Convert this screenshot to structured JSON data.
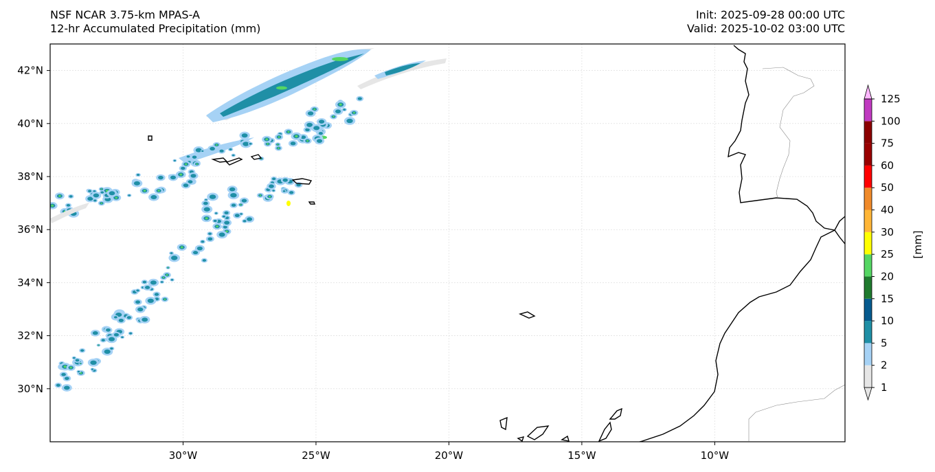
{
  "header": {
    "title_line1": "NSF NCAR 3.75-km MPAS-A",
    "title_line2": "12-hr Accumulated Precipitation (mm)",
    "init": "Init: 2025-09-28 00:00 UTC",
    "valid": "Valid: 2025-10-02 03:00 UTC"
  },
  "map": {
    "lon_range": [
      -35,
      -5.1
    ],
    "lat_range": [
      28.0,
      43.0
    ],
    "lon_ticks": [
      {
        "value": -30,
        "label": "30°W"
      },
      {
        "value": -25,
        "label": "25°W"
      },
      {
        "value": -20,
        "label": "20°W"
      },
      {
        "value": -15,
        "label": "15°W"
      },
      {
        "value": -10,
        "label": "10°W"
      }
    ],
    "lat_ticks": [
      {
        "value": 42,
        "label": "42°N"
      },
      {
        "value": 40,
        "label": "40°N"
      },
      {
        "value": 38,
        "label": "38°N"
      },
      {
        "value": 36,
        "label": "36°N"
      },
      {
        "value": 34,
        "label": "34°N"
      },
      {
        "value": 32,
        "label": "32°N"
      },
      {
        "value": 30,
        "label": "30°N"
      }
    ],
    "gridlines": true
  },
  "colorbar": {
    "label": "[mm]",
    "levels": [
      "1",
      "2",
      "5",
      "10",
      "15",
      "20",
      "25",
      "30",
      "40",
      "50",
      "60",
      "75",
      "100",
      "125"
    ],
    "colors": [
      "#e6e6e6",
      "#a6d2f5",
      "#1f8fa6",
      "#065a8e",
      "#1f7a2e",
      "#55d663",
      "#ffff00",
      "#ffb637",
      "#f08a2a",
      "#ff0000",
      "#990000",
      "#8b0000",
      "#c03ac0",
      "#ffb7ff"
    ]
  }
}
